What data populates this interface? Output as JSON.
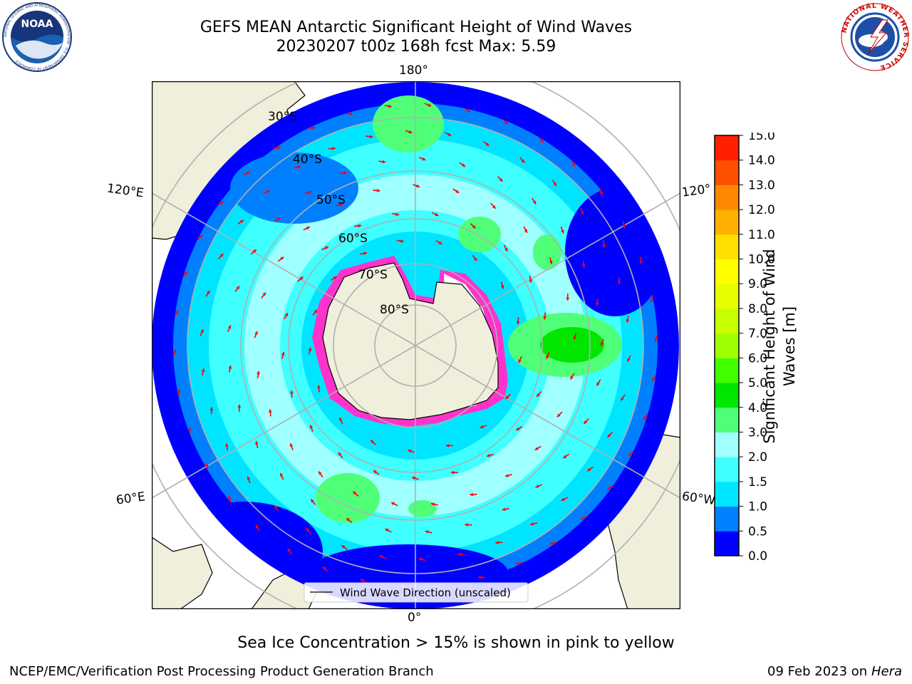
{
  "title": {
    "line1": "GEFS MEAN Antarctic Significant Height of Wind Waves",
    "line2": "20230207 t00z 168h fcst   Max: 5.59"
  },
  "logos": {
    "left": {
      "icon": "noaa-logo-icon",
      "text": "NOAA",
      "ring_text": "NATIONAL OCEANIC AND ATMOSPHERIC ADMINISTRATION · U.S. DEPARTMENT OF COMMERCE"
    },
    "right": {
      "icon": "nws-logo-icon",
      "ring_text": "NATIONAL WEATHER SERVICE"
    }
  },
  "map": {
    "projection": "south-polar-stereographic",
    "longitude_labels": {
      "top": "180°",
      "bottom": "0°",
      "upper_left": "120°E",
      "lower_left": "60°E",
      "upper_right": "120°",
      "lower_right": "60°W"
    },
    "latitude_labels": [
      "30°S",
      "40°S",
      "50°S",
      "60°S",
      "70°S",
      "80°S"
    ],
    "legend": "Wind Wave Direction (unscaled)",
    "colors": {
      "land": "#efefdb",
      "coast": "#000000",
      "grid": "#b0b0b0",
      "arrow": "#ff0000",
      "ice_edge": "#ff33cc"
    }
  },
  "colorbar": {
    "label_line1": "Significant Height of Wind",
    "label_line2": "Waves [m]",
    "ticks": [
      "0.0",
      "0.5",
      "1.0",
      "1.5",
      "2.0",
      "3.0",
      "4.0",
      "5.0",
      "6.0",
      "7.0",
      "8.0",
      "9.0",
      "10.0",
      "11.0",
      "12.0",
      "13.0",
      "14.0",
      "15.0"
    ],
    "colors": [
      "#0000ff",
      "#0080ff",
      "#00e5ff",
      "#40ffff",
      "#a0ffff",
      "#50ff78",
      "#00e600",
      "#40ff00",
      "#a0ff00",
      "#c8ff00",
      "#e6ff00",
      "#ffff00",
      "#ffe000",
      "#ffb000",
      "#ff8800",
      "#ff5000",
      "#ff2000"
    ]
  },
  "footer": {
    "ice_note": "Sea Ice Concentration > 15% is shown in pink to yellow",
    "credit": "NCEP/EMC/Verification Post Processing Product Generation Branch",
    "date": "09 Feb 2023 on",
    "host": "Hera"
  }
}
